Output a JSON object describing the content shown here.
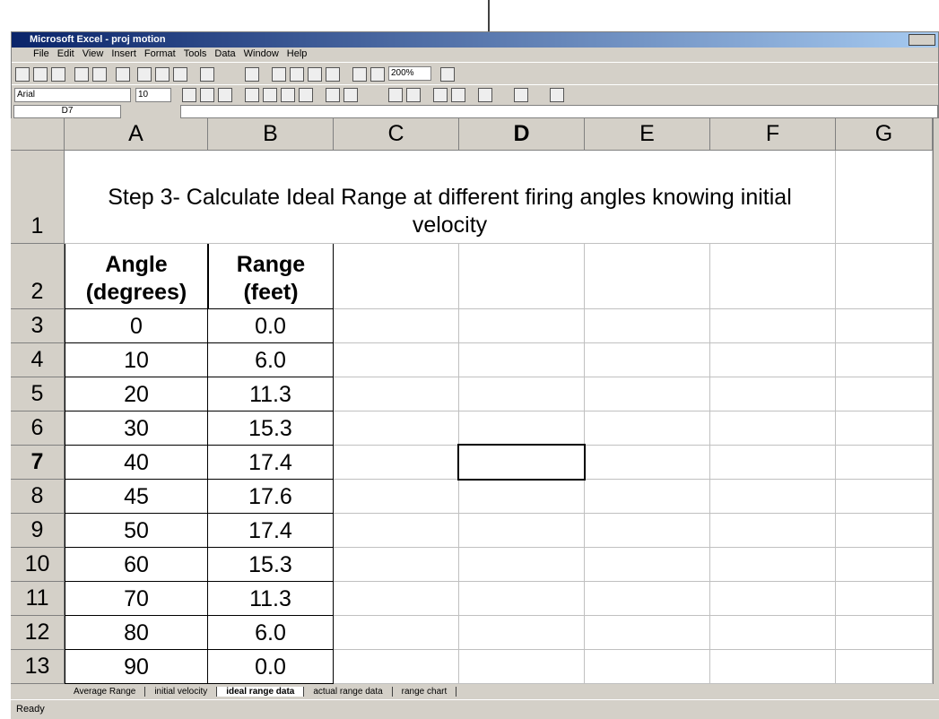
{
  "window": {
    "title": "Microsoft Excel - proj motion"
  },
  "menu": [
    "File",
    "Edit",
    "View",
    "Insert",
    "Format",
    "Tools",
    "Data",
    "Window",
    "Help"
  ],
  "toolbar": {
    "zoom": "200%"
  },
  "format_bar": {
    "font": "Arial",
    "size": "10"
  },
  "formula_bar": {
    "name_box": "D7"
  },
  "columns": [
    "A",
    "B",
    "C",
    "D",
    "E",
    "F",
    "G"
  ],
  "rows_header": [
    1,
    2,
    3,
    4,
    5,
    6,
    7,
    8,
    9,
    10,
    11,
    12,
    13
  ],
  "sheet": {
    "title": "Step 3- Calculate Ideal Range at different firing angles knowing initial velocity",
    "headers": [
      "Angle (degrees)",
      "Range (feet)"
    ],
    "rows": [
      [
        0,
        "0.0"
      ],
      [
        10,
        "6.0"
      ],
      [
        20,
        "11.3"
      ],
      [
        30,
        "15.3"
      ],
      [
        40,
        "17.4"
      ],
      [
        45,
        "17.6"
      ],
      [
        50,
        "17.4"
      ],
      [
        60,
        "15.3"
      ],
      [
        70,
        "11.3"
      ],
      [
        80,
        "6.0"
      ],
      [
        90,
        "0.0"
      ]
    ]
  },
  "tabs": [
    "Average Range",
    "initial velocity",
    "ideal range data",
    "actual range data",
    "range chart"
  ],
  "status": "Ready"
}
